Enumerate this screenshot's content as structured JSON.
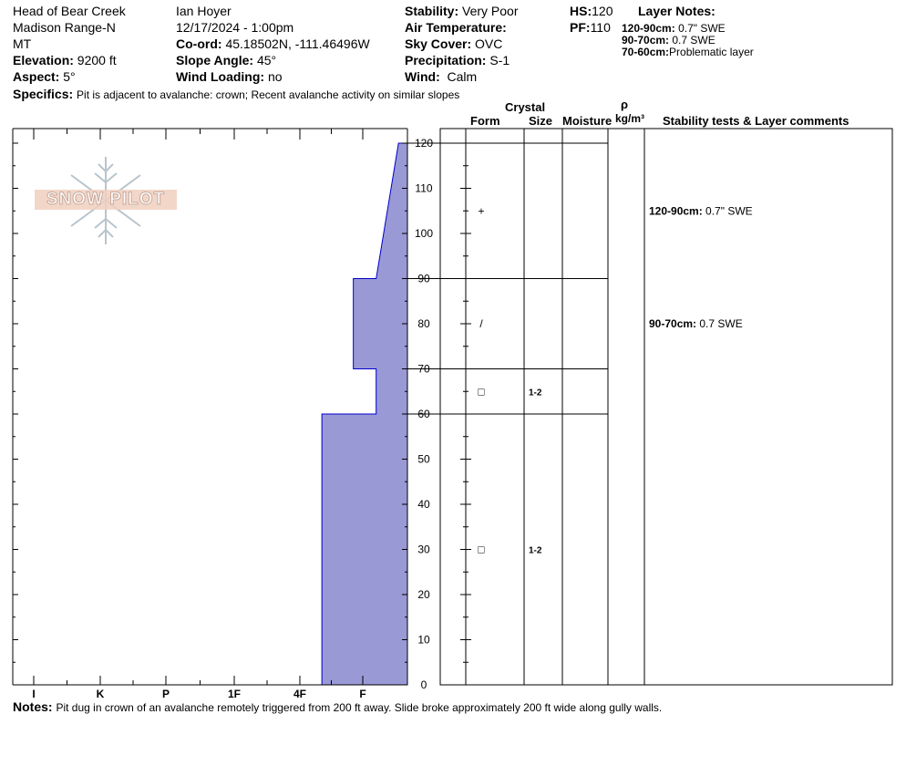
{
  "header": {
    "location": "Head of Bear Creek",
    "range": "Madison Range-N",
    "state": "MT",
    "elevation_label": "Elevation:",
    "elevation": "9200 ft",
    "aspect_label": "Aspect:",
    "aspect": "5°",
    "observer": "Ian Hoyer",
    "datetime": "12/17/2024 - 1:00pm",
    "coord_label": "Co-ord:",
    "coord": "45.18502N, -111.46496W",
    "slope_label": "Slope Angle:",
    "slope": "45°",
    "wind_loading_label": "Wind Loading:",
    "wind_loading": "no",
    "stability_label": "Stability:",
    "stability": "Very Poor",
    "air_temp_label": "Air Temperature:",
    "air_temp": "",
    "sky_label": "Sky Cover:",
    "sky": "OVC",
    "precip_label": "Precipitation:",
    "precip": "S-1",
    "wind_label": "Wind:",
    "wind": "Calm",
    "hs_label": "HS:",
    "hs": "120",
    "pf_label": "PF:",
    "pf": "110",
    "layer_notes_label": "Layer Notes:",
    "layer_notes": [
      {
        "range": "120-90cm:",
        "text": "0.7\" SWE"
      },
      {
        "range": "90-70cm:",
        "text": "0.7 SWE"
      },
      {
        "range": "70-60cm:",
        "text": "Problematic layer"
      }
    ],
    "specifics_label": "Specifics:",
    "specifics": "Pit is adjacent to avalanche: crown; Recent avalanche activity on similar slopes"
  },
  "logo_text": "SNOW PILOT",
  "table_headers": {
    "crystal": "Crystal",
    "form": "Form",
    "size": "Size",
    "moisture": "Moisture",
    "rho": "ρ",
    "density_unit": "kg/m³",
    "comments": "Stability tests & Layer comments"
  },
  "notes_label": "Notes:",
  "notes": "Pit dug in crown of an avalanche remotely triggered from 200 ft away. Slide broke approximately 200 ft wide along gully walls.",
  "colors": {
    "hardness_fill": "#9999d6",
    "hardness_stroke": "#0000cc"
  },
  "chart_data": {
    "type": "area",
    "title": "",
    "ylim": [
      0,
      120
    ],
    "yticks": [
      0,
      10,
      20,
      30,
      40,
      50,
      60,
      70,
      80,
      90,
      100,
      110,
      120
    ],
    "hardness_scale": [
      "I",
      "K",
      "P",
      "1F",
      "4F",
      "F"
    ],
    "hardness_profile": [
      {
        "depth": 0,
        "hardness": 4.35
      },
      {
        "depth": 60,
        "hardness": 4.35
      },
      {
        "depth": 60,
        "hardness": 5.3
      },
      {
        "depth": 70,
        "hardness": 5.3
      },
      {
        "depth": 70,
        "hardness": 4.85
      },
      {
        "depth": 90,
        "hardness": 4.85
      },
      {
        "depth": 90,
        "hardness": 5.3
      },
      {
        "depth": 120,
        "hardness": 5.8
      }
    ],
    "layer_boundaries": [
      120,
      90,
      70,
      60
    ],
    "crystals": [
      {
        "depth": 105,
        "form": "+",
        "size": ""
      },
      {
        "depth": 80,
        "form": "/",
        "size": ""
      },
      {
        "depth": 65,
        "form": "□",
        "size": "1-2"
      },
      {
        "depth": 30,
        "form": "□",
        "size": "1-2"
      }
    ],
    "comments": [
      {
        "depth": 105,
        "range": "120-90cm:",
        "text": "0.7\" SWE"
      },
      {
        "depth": 80,
        "range": "90-70cm:",
        "text": "0.7 SWE"
      }
    ]
  }
}
